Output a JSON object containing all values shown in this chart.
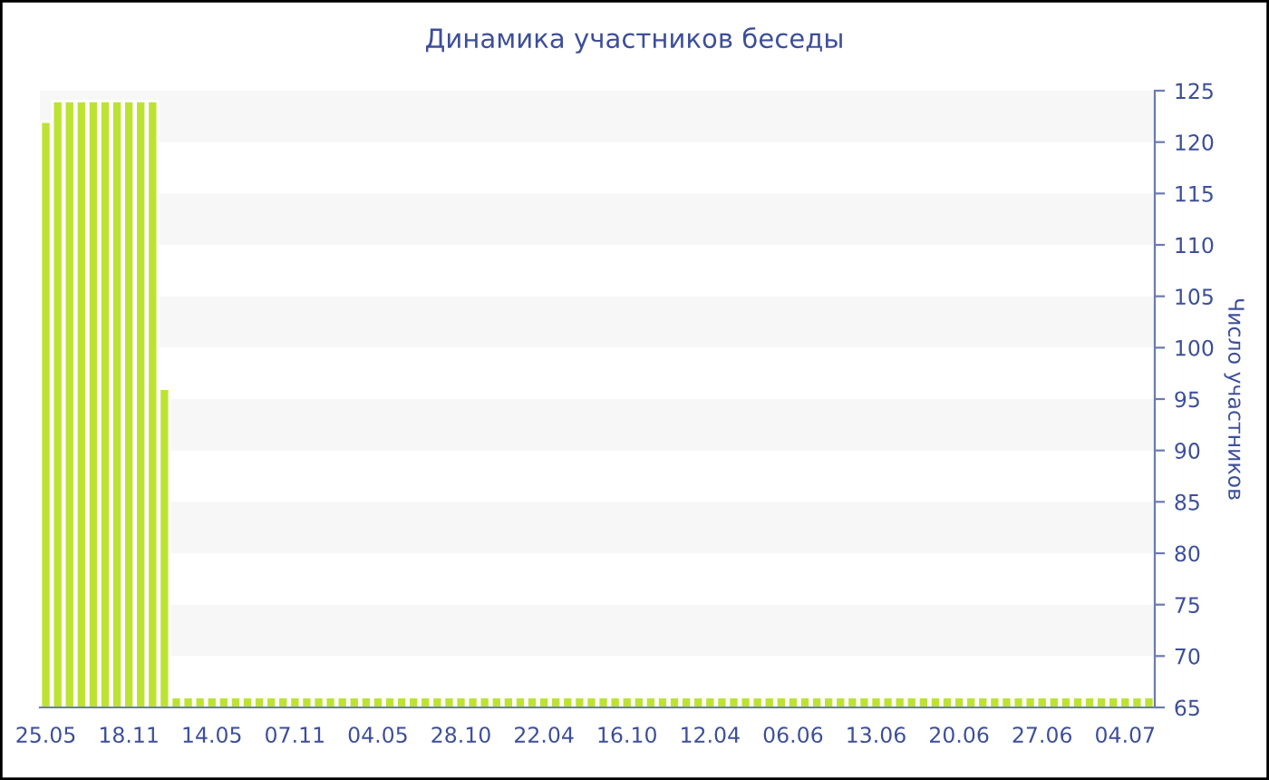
{
  "chart_data": {
    "type": "bar",
    "title": "Динамика участников беседы",
    "ylabel": "Число участников",
    "categories": [
      "25.05",
      null,
      null,
      null,
      null,
      null,
      null,
      "18.11",
      null,
      null,
      null,
      null,
      null,
      null,
      "14.05",
      null,
      null,
      null,
      null,
      null,
      null,
      "07.11",
      null,
      null,
      null,
      null,
      null,
      null,
      "04.05",
      null,
      null,
      null,
      null,
      null,
      null,
      "28.10",
      null,
      null,
      null,
      null,
      null,
      null,
      "22.04",
      null,
      null,
      null,
      null,
      null,
      null,
      "16.10",
      null,
      null,
      null,
      null,
      null,
      null,
      "12.04",
      null,
      null,
      null,
      null,
      null,
      null,
      "06.06",
      null,
      null,
      null,
      null,
      null,
      null,
      "13.06",
      null,
      null,
      null,
      null,
      null,
      null,
      "20.06",
      null,
      null,
      null,
      null,
      null,
      null,
      "27.06",
      null,
      null,
      null,
      null,
      null,
      null,
      "04.07",
      null,
      null
    ],
    "values": [
      122,
      124,
      124,
      124,
      124,
      124,
      124,
      124,
      124,
      124,
      96,
      66,
      66,
      66,
      66,
      66,
      66,
      66,
      66,
      66,
      66,
      66,
      66,
      66,
      66,
      66,
      66,
      66,
      66,
      66,
      66,
      66,
      66,
      66,
      66,
      66,
      66,
      66,
      66,
      66,
      66,
      66,
      66,
      66,
      66,
      66,
      66,
      66,
      66,
      66,
      66,
      66,
      66,
      66,
      66,
      66,
      66,
      66,
      66,
      66,
      66,
      66,
      66,
      66,
      66,
      66,
      66,
      66,
      66,
      66,
      66,
      66,
      66,
      66,
      66,
      66,
      66,
      66,
      66,
      66,
      66,
      66,
      66,
      66,
      66,
      66,
      66,
      66,
      66,
      66,
      66,
      66,
      66,
      66
    ],
    "color": "#bde332",
    "ylim": [
      65,
      125
    ],
    "yticks": [
      65,
      70,
      75,
      80,
      85,
      90,
      95,
      100,
      105,
      110,
      115,
      120,
      125
    ],
    "bands": [
      {
        "axis": "y",
        "from": 70,
        "to": 75,
        "color": "#f7f7f7"
      },
      {
        "axis": "y",
        "from": 80,
        "to": 85,
        "color": "#f7f7f7"
      },
      {
        "axis": "y",
        "from": 90,
        "to": 95,
        "color": "#f7f7f7"
      },
      {
        "axis": "y",
        "from": 100,
        "to": 105,
        "color": "#f7f7f7"
      },
      {
        "axis": "y",
        "from": 110,
        "to": 115,
        "color": "#f7f7f7"
      },
      {
        "axis": "y",
        "from": 120,
        "to": 125,
        "color": "#f7f7f7"
      }
    ]
  }
}
